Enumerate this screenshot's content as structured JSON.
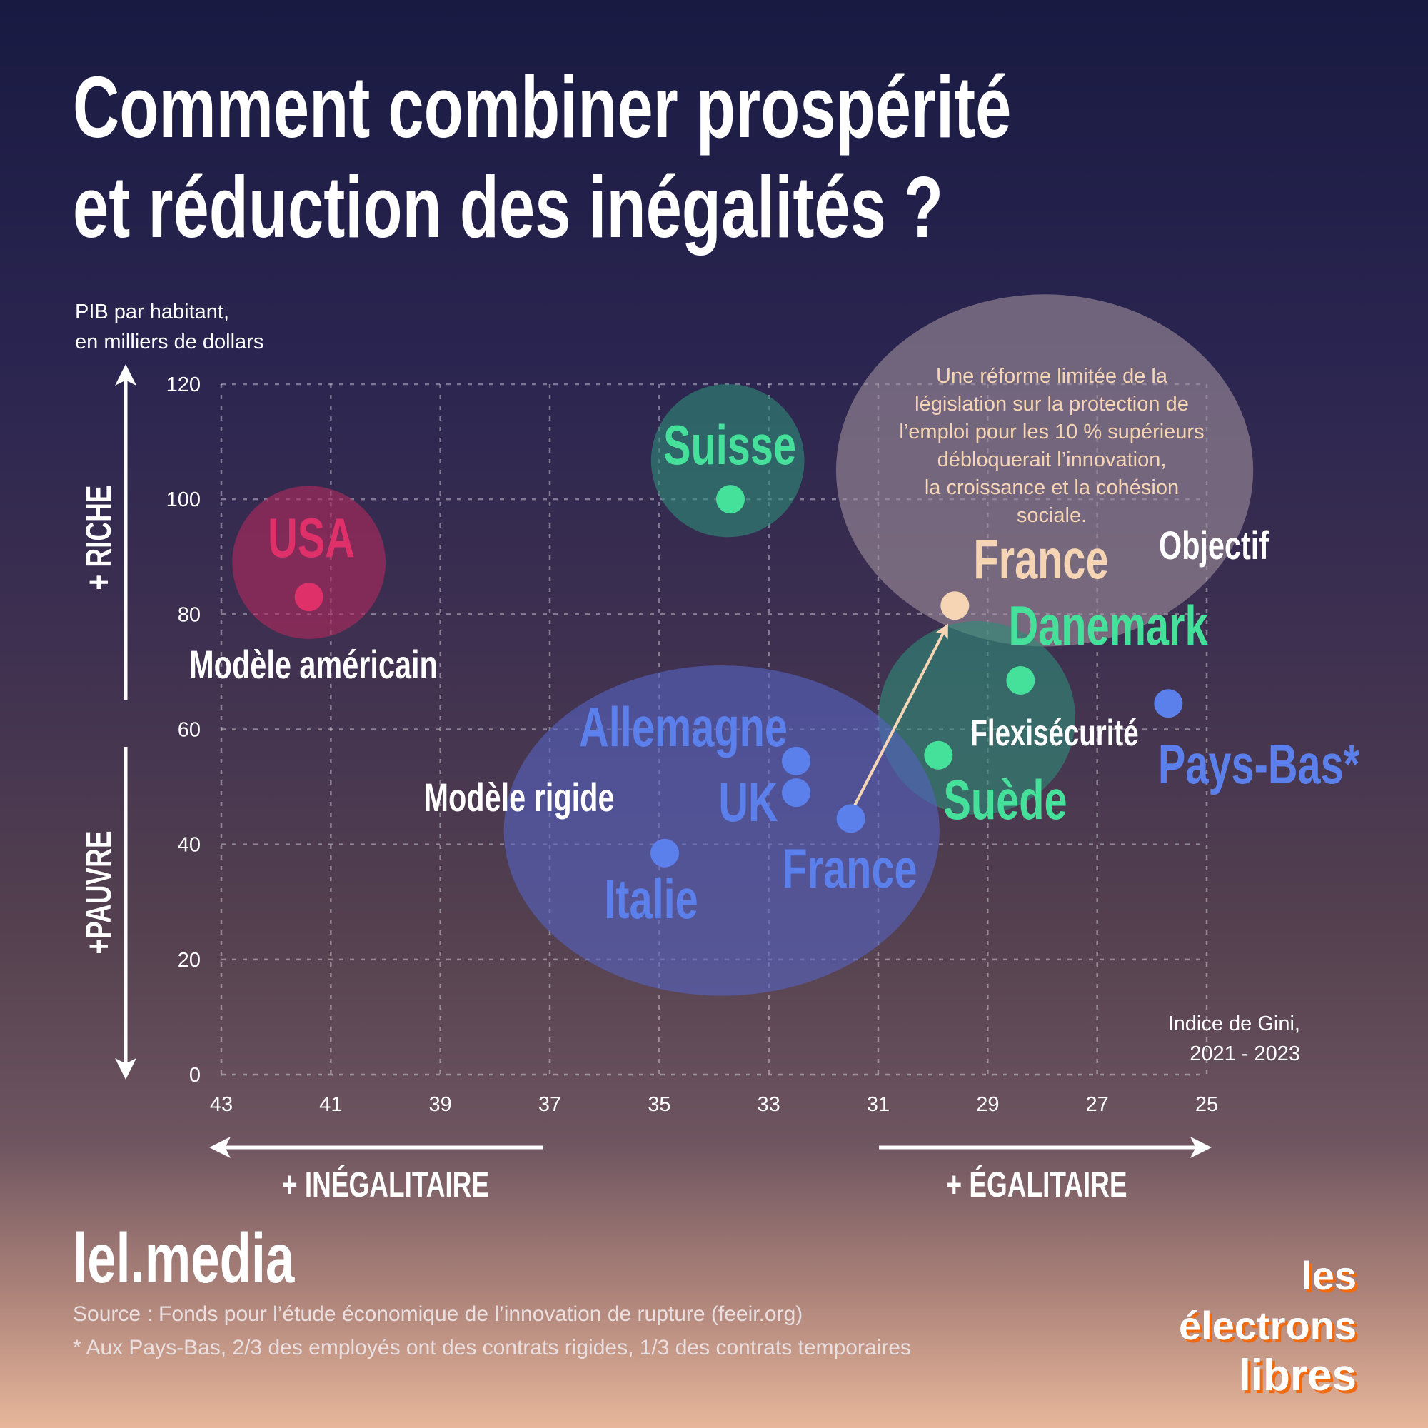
{
  "title": {
    "line1": "Comment combiner prospérité",
    "line2": "et réduction des inégalités ?"
  },
  "chart_data": {
    "type": "scatter",
    "ylabel": [
      "PIB par habitant,",
      "en milliers de dollars"
    ],
    "xlabel": [
      "Indice de Gini,",
      "2021 - 2023"
    ],
    "xlim": [
      43,
      25
    ],
    "ylim": [
      0,
      120
    ],
    "xticks": [
      43,
      41,
      39,
      37,
      35,
      33,
      31,
      29,
      27,
      25
    ],
    "yticks": [
      0,
      20,
      40,
      60,
      80,
      100,
      120
    ],
    "grid": true,
    "y_arrows": {
      "up": "+ RICHE",
      "down": "+PAUVRE"
    },
    "x_arrows": {
      "left": "+ INÉGALITAIRE",
      "right": "+ ÉGALITAIRE"
    },
    "points": [
      {
        "name": "USA",
        "x": 41.4,
        "y": 83,
        "color": "#e0306a"
      },
      {
        "name": "Suisse",
        "x": 33.7,
        "y": 100,
        "color": "#45e09a"
      },
      {
        "name": "France",
        "x": 29.6,
        "y": 81.5,
        "color": "#f6d5b5"
      },
      {
        "name": "Danemark",
        "x": 28.4,
        "y": 68.5,
        "color": "#45e09a"
      },
      {
        "name": "Suède",
        "x": 29.9,
        "y": 55.5,
        "color": "#45e09a"
      },
      {
        "name": "Pays-Bas*",
        "x": 25.7,
        "y": 64.5,
        "color": "#5b80ec"
      },
      {
        "name": "Allemagne",
        "x": 32.5,
        "y": 54.5,
        "color": "#5b80ec"
      },
      {
        "name": "UK",
        "x": 32.5,
        "y": 49,
        "color": "#5b80ec"
      },
      {
        "name": "France",
        "x": 31.5,
        "y": 44.5,
        "color": "#5b80ec"
      },
      {
        "name": "Italie",
        "x": 34.9,
        "y": 38.5,
        "color": "#5b80ec"
      }
    ],
    "groups": [
      {
        "name": "Modèle américain",
        "x": 41.4,
        "y": 89,
        "rx": 1.4,
        "ry": 13.3,
        "color": "#b02a5e"
      },
      {
        "name": "",
        "x": 33.75,
        "y": 106.7,
        "rx": 1.4,
        "ry": 13.3,
        "color": "#2f8a78"
      },
      {
        "name": "Objectif",
        "x": 27.96,
        "y": 105,
        "rx": 3.81,
        "ry": 30.6,
        "color": "#9d8d9a"
      },
      {
        "name": "Flexisécurité",
        "x": 29.2,
        "y": 62,
        "rx": 1.8,
        "ry": 16.8,
        "color": "#2f8a78"
      },
      {
        "name": "Modèle rigide",
        "x": 33.86,
        "y": 42.4,
        "rx": 3.98,
        "ry": 28.7,
        "color": "#5563c0"
      }
    ],
    "arrow": {
      "from": "France (31.5, 44.5)",
      "to": "France (29.6, 81.5)",
      "color": "#f6d5b5"
    },
    "annotation": [
      "Une réforme limitée de la",
      "législation sur la protection de",
      "l’emploi pour les 10 % supérieurs",
      "débloquerait l’innovation,",
      "la croissance et la cohésion",
      "sociale."
    ]
  },
  "footer": {
    "site": "lel.media",
    "source": "Source : Fonds pour l’étude économique de l’innovation de rupture (feeir.org)",
    "note": "* Aux Pays-Bas, 2/3 des employés ont des contrats rigides, 1/3 des contrats temporaires",
    "logo": [
      "les électrons",
      "libres"
    ]
  }
}
